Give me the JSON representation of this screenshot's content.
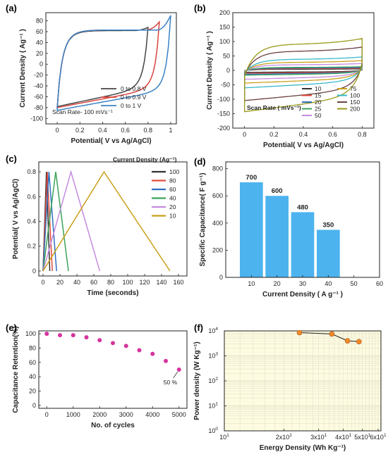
{
  "chart_data": [
    {
      "panel": "(a)",
      "type": "line",
      "xlabel": "Potential( V vs Ag/AgCl)",
      "ylabel": "Current Density ( Ag⁻¹ )",
      "xlim": [
        -0.1,
        1.05
      ],
      "ylim": [
        -110,
        95
      ],
      "xticks": [
        0,
        0.2,
        0.4,
        0.6,
        0.8,
        1.0
      ],
      "yticks": [
        -100,
        -80,
        -60,
        -40,
        -20,
        0,
        20,
        40,
        60,
        80
      ],
      "annotation": "Scan Rate- 100 mVs⁻¹",
      "legend_position": "bottom-right",
      "series": [
        {
          "name": "0 to 0.8 V",
          "color": "#444444",
          "vmax": 0.8,
          "plateau": 62,
          "min": -78,
          "end": 68
        },
        {
          "name": "0 to 0.9 V",
          "color": "#d9453e",
          "vmax": 0.9,
          "plateau": 63,
          "min": -80,
          "end": 78
        },
        {
          "name": "0 to 1 V",
          "color": "#3b82c4",
          "vmax": 1.0,
          "plateau": 63,
          "min": -85,
          "end": 90
        }
      ]
    },
    {
      "panel": "(b)",
      "type": "line",
      "xlabel": "Potential( V vs Ag/AgCl)",
      "ylabel": "Current Density ( Ag⁻¹ )",
      "xlim": [
        -0.08,
        0.88
      ],
      "ylim": [
        -200,
        200
      ],
      "xticks": [
        0,
        0.2,
        0.4,
        0.6,
        0.8
      ],
      "yticks": [
        -200,
        -150,
        -100,
        -50,
        0,
        50,
        100,
        150,
        200
      ],
      "legend_title": "Scan Rate ( mVs⁻¹)",
      "legend_position": "bottom-right",
      "series": [
        {
          "name": "10",
          "color": "#333333",
          "amp": 6
        },
        {
          "name": "15",
          "color": "#e04a3c",
          "amp": 9
        },
        {
          "name": "20",
          "color": "#2f6fbf",
          "amp": 12
        },
        {
          "name": "25",
          "color": "#3aa35a",
          "amp": 15
        },
        {
          "name": "50",
          "color": "#c58be0",
          "amp": 28
        },
        {
          "name": "75",
          "color": "#c9a01b",
          "amp": 40
        },
        {
          "name": "100",
          "color": "#37b8c9",
          "amp": 55
        },
        {
          "name": "150",
          "color": "#6b3f3f",
          "amp": 95
        },
        {
          "name": "200",
          "color": "#9a9a1a",
          "amp": 130
        }
      ]
    },
    {
      "panel": "(c)",
      "type": "line",
      "xlabel": "Time (seconds)",
      "ylabel": "Potential( V vs Ag/AgCl)",
      "xlim": [
        -5,
        170
      ],
      "ylim": [
        -0.04,
        0.88
      ],
      "xticks": [
        0,
        20,
        40,
        60,
        80,
        100,
        120,
        140,
        160
      ],
      "yticks": [
        0,
        0.2,
        0.4,
        0.6,
        0.8
      ],
      "legend_title": "Current Density (Ag⁻¹)",
      "legend_position": "top-right",
      "series": [
        {
          "name": "100",
          "color": "#333333",
          "charge_end": 4,
          "discharge_end": 8
        },
        {
          "name": "80",
          "color": "#e04a3c",
          "charge_end": 5,
          "discharge_end": 11
        },
        {
          "name": "60",
          "color": "#2f6fbf",
          "charge_end": 7,
          "discharge_end": 16
        },
        {
          "name": "40",
          "color": "#3aa35a",
          "charge_end": 15,
          "discharge_end": 30
        },
        {
          "name": "20",
          "color": "#c58be0",
          "charge_end": 33,
          "discharge_end": 67
        },
        {
          "name": "10",
          "color": "#c9a01b",
          "charge_end": 72,
          "discharge_end": 150
        }
      ]
    },
    {
      "panel": "(d)",
      "type": "bar",
      "xlabel": "Current Density ( A g⁻¹ )",
      "ylabel": "Specific Capacitance( F g⁻¹)",
      "xlim": [
        0,
        60
      ],
      "ylim": [
        0,
        850
      ],
      "xticks": [
        10,
        20,
        30,
        40,
        50,
        60
      ],
      "yticks": [
        0,
        200,
        400,
        600,
        800
      ],
      "bar_color": "#4cb3ef",
      "x": [
        10,
        20,
        30,
        40
      ],
      "values": [
        700,
        600,
        480,
        350
      ],
      "data_labels": [
        "700",
        "600",
        "480",
        "350"
      ]
    },
    {
      "panel": "(e)",
      "type": "scatter",
      "xlabel": "No. of cycles",
      "ylabel": "Capacitance Retention(%)",
      "xlim": [
        -300,
        5300
      ],
      "ylim": [
        -4,
        104
      ],
      "xticks": [
        0,
        1000,
        2000,
        3000,
        4000,
        5000
      ],
      "yticks": [
        0,
        20,
        40,
        60,
        80,
        100
      ],
      "marker_color": "#d6339e",
      "annotation": "50 %",
      "x": [
        0,
        500,
        1000,
        1500,
        2000,
        2500,
        3000,
        3500,
        4000,
        4500,
        5000
      ],
      "values": [
        100,
        98,
        98,
        95,
        91,
        87,
        83,
        77,
        72,
        62,
        50
      ]
    },
    {
      "panel": "(f)",
      "type": "line",
      "xlabel": "Energy Density (Wh Kg⁻¹)",
      "ylabel": "Power density (W Kg⁻¹)",
      "log_x": true,
      "log_y": true,
      "xlim": [
        10,
        62
      ],
      "ylim": [
        1,
        10000
      ],
      "xticks": [
        {
          "v": 10,
          "base": "10",
          "exp": "1"
        },
        {
          "v": 20,
          "base": "2x10",
          "exp": "1"
        },
        {
          "v": 30,
          "base": "3x10",
          "exp": "1"
        },
        {
          "v": 40,
          "base": "4x10",
          "exp": "1"
        },
        {
          "v": 50,
          "base": "5x10",
          "exp": "1"
        },
        {
          "v": 60,
          "base": "6x10",
          "exp": "1"
        }
      ],
      "yticks": [
        {
          "v": 1,
          "base": "10",
          "exp": "0"
        },
        {
          "v": 10,
          "base": "10",
          "exp": "1"
        },
        {
          "v": 100,
          "base": "10",
          "exp": "2"
        },
        {
          "v": 1000,
          "base": "10",
          "exp": "3"
        },
        {
          "v": 10000,
          "base": "10",
          "exp": "4"
        }
      ],
      "grid": true,
      "background": "#fdfbe0",
      "marker_color": "#f0892a",
      "x": [
        24,
        35,
        42,
        48
      ],
      "values": [
        8500,
        7500,
        4000,
        3700
      ]
    }
  ]
}
